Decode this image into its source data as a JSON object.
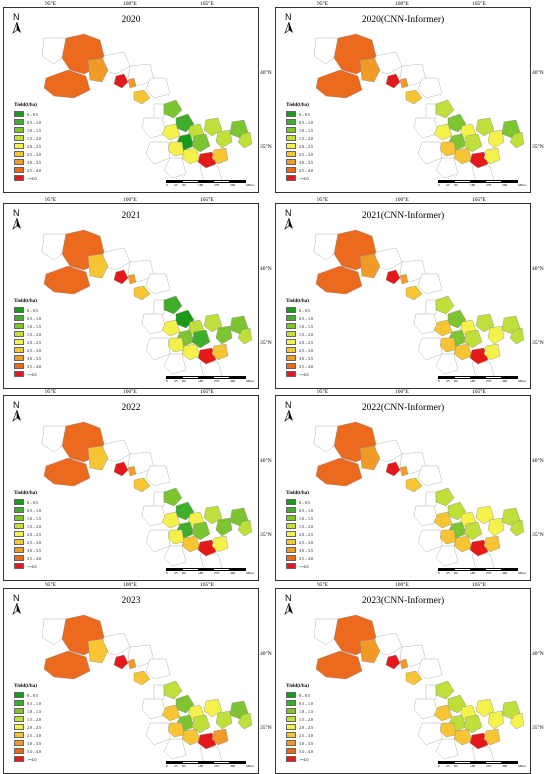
{
  "lon_labels": [
    "95°E",
    "100°E",
    "105°E"
  ],
  "lat_labels": [
    "40°N",
    "35°N"
  ],
  "north_label": "N",
  "legend": {
    "title": "Yield(t/ha)",
    "items": [
      {
        "label": "0 – 0.5",
        "color": "#1a9a1a"
      },
      {
        "label": "0.5 – 1.0",
        "color": "#3fae2a"
      },
      {
        "label": "1.0 – 1.5",
        "color": "#7cc430"
      },
      {
        "label": "1.5 – 2.0",
        "color": "#bfe03a"
      },
      {
        "label": "2.0 – 2.5",
        "color": "#f3f14a"
      },
      {
        "label": "2.5 – 3.0",
        "color": "#f7c533"
      },
      {
        "label": "3.0 – 3.5",
        "color": "#f29a28"
      },
      {
        "label": "3.5 – 4.0",
        "color": "#ec6a1e"
      },
      {
        "label": ">=4.0",
        "color": "#e4191a"
      }
    ]
  },
  "scale": {
    "labels": [
      "0",
      "45",
      "90",
      "180",
      "270",
      "360"
    ],
    "unit": "Miles"
  },
  "panels": [
    {
      "title": "2020"
    },
    {
      "title": "2020(CNN-Informer)"
    },
    {
      "title": "2021"
    },
    {
      "title": "2021(CNN-Informer)"
    },
    {
      "title": "2022"
    },
    {
      "title": "2022(CNN-Informer)"
    },
    {
      "title": "2023"
    },
    {
      "title": "2023(CNN-Informer)"
    }
  ]
}
